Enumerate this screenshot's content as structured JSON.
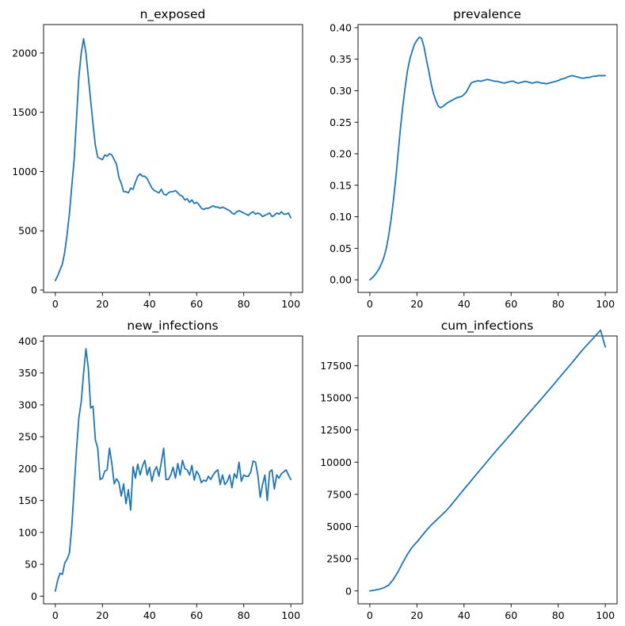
{
  "chart_data": [
    {
      "type": "line",
      "title": "n_exposed",
      "xlabel": "",
      "ylabel": "",
      "xlim": [
        -5,
        105
      ],
      "ylim": [
        -20,
        2240
      ],
      "xticks": [
        0,
        20,
        40,
        60,
        80,
        100
      ],
      "xtick_labels": [
        "0",
        "20",
        "40",
        "60",
        "80",
        "100"
      ],
      "yticks": [
        0,
        500,
        1000,
        1500,
        2000
      ],
      "ytick_labels": [
        "0",
        "500",
        "1000",
        "1500",
        "2000"
      ],
      "x": [
        0,
        1,
        2,
        3,
        4,
        5,
        6,
        7,
        8,
        9,
        10,
        11,
        12,
        13,
        14,
        15,
        16,
        17,
        18,
        19,
        20,
        21,
        22,
        23,
        24,
        25,
        26,
        27,
        28,
        29,
        30,
        31,
        32,
        33,
        34,
        35,
        36,
        37,
        38,
        39,
        40,
        41,
        42,
        43,
        44,
        45,
        46,
        47,
        48,
        49,
        50,
        51,
        52,
        53,
        54,
        55,
        56,
        57,
        58,
        59,
        60,
        61,
        62,
        63,
        64,
        65,
        66,
        67,
        68,
        69,
        70,
        71,
        72,
        73,
        74,
        75,
        76,
        77,
        78,
        79,
        80,
        81,
        82,
        83,
        84,
        85,
        86,
        87,
        88,
        89,
        90,
        91,
        92,
        93,
        94,
        95,
        96,
        97,
        98,
        99,
        100
      ],
      "y": [
        80,
        120,
        170,
        220,
        320,
        470,
        650,
        880,
        1100,
        1450,
        1800,
        2000,
        2120,
        2000,
        1800,
        1600,
        1400,
        1220,
        1120,
        1110,
        1100,
        1140,
        1130,
        1150,
        1140,
        1100,
        1060,
        950,
        900,
        830,
        830,
        820,
        860,
        850,
        910,
        960,
        980,
        960,
        960,
        940,
        900,
        860,
        840,
        830,
        820,
        850,
        810,
        800,
        820,
        830,
        830,
        840,
        820,
        800,
        790,
        760,
        770,
        740,
        760,
        730,
        740,
        720,
        690,
        680,
        690,
        690,
        700,
        710,
        700,
        700,
        690,
        700,
        690,
        680,
        670,
        650,
        640,
        660,
        670,
        660,
        650,
        640,
        630,
        650,
        660,
        640,
        650,
        640,
        620,
        630,
        640,
        650,
        620,
        630,
        650,
        640,
        660,
        640,
        640,
        650,
        610
      ]
    },
    {
      "type": "line",
      "title": "prevalence",
      "xlabel": "",
      "ylabel": "",
      "xlim": [
        -5,
        105
      ],
      "ylim": [
        -0.02,
        0.405
      ],
      "xticks": [
        0,
        20,
        40,
        60,
        80,
        100
      ],
      "xtick_labels": [
        "0",
        "20",
        "40",
        "60",
        "80",
        "100"
      ],
      "yticks": [
        0.0,
        0.05,
        0.1,
        0.15,
        0.2,
        0.25,
        0.3,
        0.35,
        0.4
      ],
      "ytick_labels": [
        "0.00",
        "0.05",
        "0.10",
        "0.15",
        "0.20",
        "0.25",
        "0.30",
        "0.35",
        "0.40"
      ],
      "x": [
        0,
        1,
        2,
        3,
        4,
        5,
        6,
        7,
        8,
        9,
        10,
        11,
        12,
        13,
        14,
        15,
        16,
        17,
        18,
        19,
        20,
        21,
        22,
        23,
        24,
        25,
        26,
        27,
        28,
        29,
        30,
        31,
        32,
        33,
        34,
        35,
        36,
        37,
        38,
        39,
        40,
        41,
        42,
        43,
        44,
        45,
        46,
        47,
        48,
        49,
        50,
        51,
        52,
        53,
        54,
        55,
        56,
        57,
        58,
        59,
        60,
        61,
        62,
        63,
        64,
        65,
        66,
        67,
        68,
        69,
        70,
        71,
        72,
        73,
        74,
        75,
        76,
        77,
        78,
        79,
        80,
        81,
        82,
        83,
        84,
        85,
        86,
        87,
        88,
        89,
        90,
        91,
        92,
        93,
        94,
        95,
        96,
        97,
        98,
        99,
        100
      ],
      "y": [
        0.0,
        0.003,
        0.007,
        0.012,
        0.018,
        0.026,
        0.036,
        0.05,
        0.07,
        0.095,
        0.125,
        0.16,
        0.2,
        0.24,
        0.275,
        0.305,
        0.332,
        0.35,
        0.363,
        0.374,
        0.38,
        0.385,
        0.383,
        0.37,
        0.35,
        0.332,
        0.312,
        0.296,
        0.285,
        0.276,
        0.273,
        0.275,
        0.278,
        0.281,
        0.283,
        0.285,
        0.287,
        0.289,
        0.29,
        0.291,
        0.294,
        0.298,
        0.305,
        0.312,
        0.314,
        0.315,
        0.316,
        0.315,
        0.316,
        0.317,
        0.318,
        0.317,
        0.316,
        0.315,
        0.315,
        0.314,
        0.313,
        0.312,
        0.313,
        0.314,
        0.315,
        0.315,
        0.313,
        0.312,
        0.313,
        0.314,
        0.315,
        0.314,
        0.313,
        0.312,
        0.313,
        0.314,
        0.313,
        0.312,
        0.312,
        0.311,
        0.312,
        0.313,
        0.314,
        0.315,
        0.316,
        0.318,
        0.319,
        0.32,
        0.322,
        0.323,
        0.324,
        0.323,
        0.322,
        0.321,
        0.32,
        0.32,
        0.321,
        0.321,
        0.322,
        0.323,
        0.323,
        0.324,
        0.324,
        0.324,
        0.324
      ]
    },
    {
      "type": "line",
      "title": "new_infections",
      "xlabel": "",
      "ylabel": "",
      "xlim": [
        -5,
        105
      ],
      "ylim": [
        -12,
        408
      ],
      "xticks": [
        0,
        20,
        40,
        60,
        80,
        100
      ],
      "xtick_labels": [
        "0",
        "20",
        "40",
        "60",
        "80",
        "100"
      ],
      "yticks": [
        0,
        50,
        100,
        150,
        200,
        250,
        300,
        350,
        400
      ],
      "ytick_labels": [
        "0",
        "50",
        "100",
        "150",
        "200",
        "250",
        "300",
        "350",
        "400"
      ],
      "x": [
        0,
        1,
        2,
        3,
        4,
        5,
        6,
        7,
        8,
        9,
        10,
        11,
        12,
        13,
        14,
        15,
        16,
        17,
        18,
        19,
        20,
        21,
        22,
        23,
        24,
        25,
        26,
        27,
        28,
        29,
        30,
        31,
        32,
        33,
        34,
        35,
        36,
        37,
        38,
        39,
        40,
        41,
        42,
        43,
        44,
        45,
        46,
        47,
        48,
        49,
        50,
        51,
        52,
        53,
        54,
        55,
        56,
        57,
        58,
        59,
        60,
        61,
        62,
        63,
        64,
        65,
        66,
        67,
        68,
        69,
        70,
        71,
        72,
        73,
        74,
        75,
        76,
        77,
        78,
        79,
        80,
        81,
        82,
        83,
        84,
        85,
        86,
        87,
        88,
        89,
        90,
        91,
        92,
        93,
        94,
        95,
        96,
        97,
        98,
        99,
        100
      ],
      "y": [
        8,
        25,
        36,
        34,
        52,
        58,
        68,
        110,
        170,
        230,
        280,
        305,
        350,
        388,
        358,
        295,
        298,
        245,
        232,
        183,
        185,
        196,
        198,
        232,
        208,
        176,
        184,
        178,
        157,
        176,
        145,
        167,
        135,
        203,
        185,
        207,
        190,
        204,
        213,
        190,
        202,
        180,
        196,
        203,
        188,
        210,
        232,
        183,
        183,
        190,
        202,
        185,
        208,
        190,
        213,
        200,
        198,
        190,
        205,
        182,
        196,
        190,
        178,
        182,
        180,
        188,
        183,
        190,
        195,
        198,
        175,
        190,
        175,
        180,
        190,
        170,
        192,
        185,
        210,
        180,
        190,
        188,
        188,
        195,
        212,
        210,
        190,
        155,
        175,
        190,
        150,
        195,
        198,
        168,
        190,
        185,
        192,
        195,
        198,
        190,
        183
      ]
    },
    {
      "type": "line",
      "title": "cum_infections",
      "xlabel": "",
      "ylabel": "",
      "xlim": [
        -5,
        105
      ],
      "ylim": [
        -1000,
        19800
      ],
      "xticks": [
        0,
        20,
        40,
        60,
        80,
        100
      ],
      "xtick_labels": [
        "0",
        "20",
        "40",
        "60",
        "80",
        "100"
      ],
      "yticks": [
        0,
        2500,
        5000,
        7500,
        10000,
        12500,
        15000,
        17500
      ],
      "ytick_labels": [
        "0",
        "2500",
        "5000",
        "7500",
        "10000",
        "12500",
        "15000",
        "17500"
      ],
      "x": [
        0,
        2,
        4,
        6,
        8,
        10,
        12,
        14,
        16,
        18,
        20,
        22,
        24,
        26,
        28,
        30,
        32,
        34,
        36,
        38,
        40,
        42,
        44,
        46,
        48,
        50,
        52,
        54,
        56,
        58,
        60,
        62,
        64,
        66,
        68,
        70,
        72,
        74,
        76,
        78,
        80,
        82,
        84,
        86,
        88,
        90,
        92,
        94,
        96,
        98,
        100
      ],
      "y": [
        0,
        60,
        130,
        250,
        450,
        900,
        1500,
        2200,
        2850,
        3400,
        3800,
        4250,
        4700,
        5100,
        5450,
        5800,
        6150,
        6550,
        7000,
        7450,
        7900,
        8330,
        8780,
        9220,
        9650,
        10090,
        10530,
        10960,
        11370,
        11790,
        12200,
        12630,
        13060,
        13480,
        13900,
        14320,
        14740,
        15160,
        15590,
        16020,
        16460,
        16890,
        17320,
        17750,
        18200,
        18650,
        19050,
        19450,
        19850,
        20250,
        18950
      ]
    }
  ]
}
